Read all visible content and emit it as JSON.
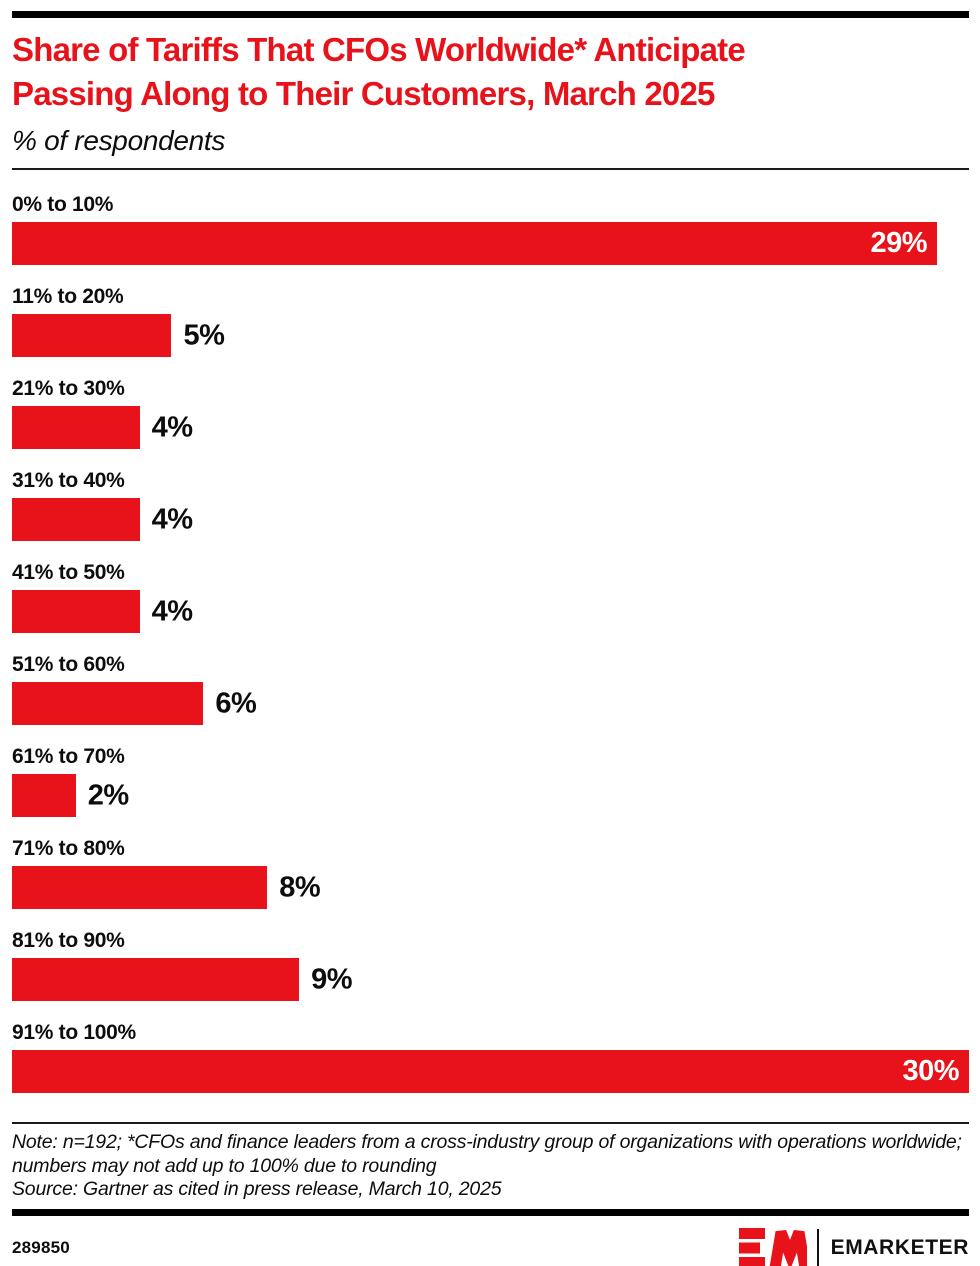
{
  "header": {
    "title_lines": [
      "Share of Tariffs That CFOs Worldwide* Anticipate",
      "Passing Along to Their Customers, March 2025"
    ],
    "subtitle": "% of respondents"
  },
  "chart_data": {
    "type": "bar",
    "orientation": "horizontal",
    "title": "Share of Tariffs That CFOs Worldwide* Anticipate Passing Along to Their Customers, March 2025",
    "subtitle": "% of respondents",
    "categories": [
      "0% to 10%",
      "11% to 20%",
      "21% to 30%",
      "31% to 40%",
      "41% to 50%",
      "51% to 60%",
      "61% to 70%",
      "71% to 80%",
      "81% to 90%",
      "91% to 100%"
    ],
    "values": [
      29,
      5,
      4,
      4,
      4,
      6,
      2,
      8,
      9,
      30
    ],
    "value_labels": [
      "29%",
      "5%",
      "4%",
      "4%",
      "4%",
      "6%",
      "2%",
      "8%",
      "9%",
      "30%"
    ],
    "xlim": [
      0,
      30
    ],
    "grid": false,
    "legend": "none",
    "bar_color": "#e8121b",
    "value_label_inside_color": "#ffffff",
    "value_label_outside_color": "#0d0d0d"
  },
  "note": {
    "note_text": "Note: n=192; *CFOs and finance leaders from a cross-industry group of organizations with operations worldwide; numbers may not add up to 100% due to rounding",
    "source_text": "Source: Gartner as cited in press release, March 10, 2025"
  },
  "footer": {
    "chart_id": "289850",
    "brand": "EMARKETER",
    "logo_monogram": "EM",
    "brand_red": "#e8121b",
    "accent_black": "#000000"
  }
}
